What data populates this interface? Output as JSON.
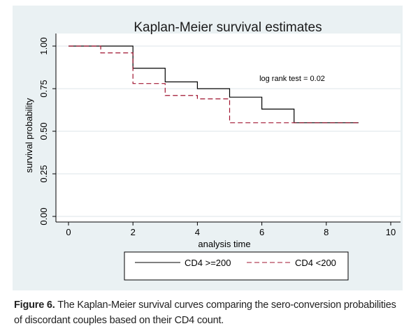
{
  "figure": {
    "caption_label": "Figure 6.",
    "caption_text": " The Kaplan-Meier survival curves comparing the sero-conversion probabilities of discordant couples based on their CD4 count."
  },
  "chart_data": {
    "type": "line",
    "title": "Kaplan-Meier survival estimates",
    "xlabel": "analysis time",
    "ylabel": "survival probability",
    "xlim": [
      0,
      10
    ],
    "ylim": [
      0,
      1
    ],
    "x_ticks": [
      "0",
      "2",
      "4",
      "6",
      "8",
      "10"
    ],
    "y_ticks": [
      "0.00",
      "0.25",
      "0.50",
      "0.75",
      "1.00"
    ],
    "annotation": "log rank test = 0.02",
    "legend_position": "bottom",
    "grid": true,
    "series": [
      {
        "name": "CD4 >=200",
        "color": "#000000",
        "style": "solid",
        "steps": [
          [
            0,
            1.0
          ],
          [
            2,
            0.87
          ],
          [
            3,
            0.79
          ],
          [
            4,
            0.75
          ],
          [
            5,
            0.7
          ],
          [
            6,
            0.63
          ],
          [
            7,
            0.55
          ],
          [
            9,
            0.55
          ]
        ]
      },
      {
        "name": "CD4 <200",
        "color": "#a01530",
        "style": "dashed",
        "steps": [
          [
            0,
            1.0
          ],
          [
            1,
            0.96
          ],
          [
            2,
            0.78
          ],
          [
            3,
            0.71
          ],
          [
            4,
            0.69
          ],
          [
            5,
            0.55
          ],
          [
            9,
            0.55
          ]
        ]
      }
    ]
  }
}
